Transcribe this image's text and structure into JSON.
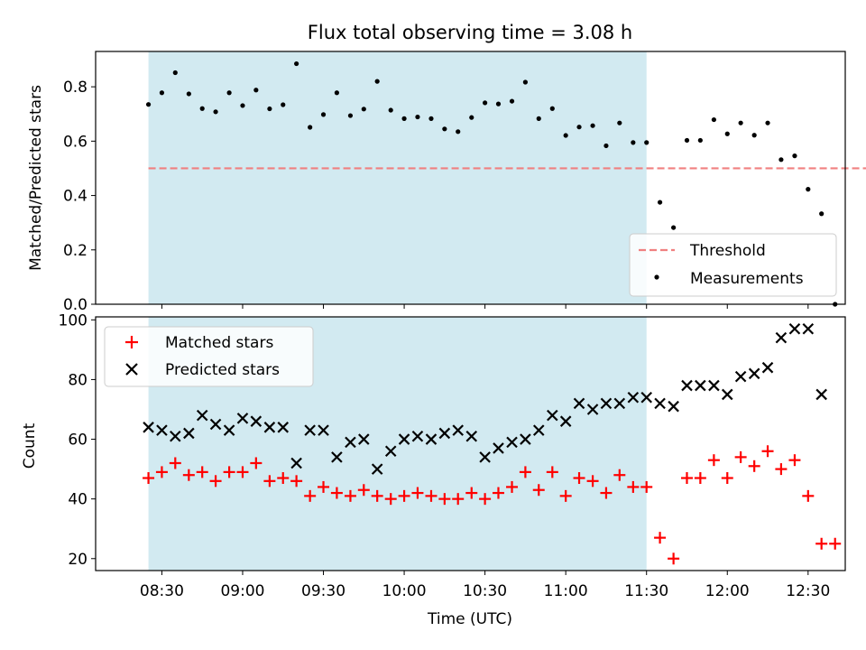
{
  "title": "Flux total observing time = 3.08 h",
  "chart_data": [
    {
      "type": "scatter",
      "panel": "top",
      "ylabel": "Matched/Predicted stars",
      "ylim": [
        0,
        0.93
      ],
      "yticks": [
        0.0,
        0.2,
        0.4,
        0.6,
        0.8
      ],
      "ytick_labels": [
        "0.0",
        "0.2",
        "0.4",
        "0.6",
        "0.8"
      ],
      "threshold": {
        "label": "Threshold",
        "value": 0.5,
        "x_range": [
          8.417,
          12.917
        ],
        "color": "#f08080"
      },
      "shaded_interval": {
        "x_start": 8.417,
        "x_end": 11.5,
        "color": "#add8e6"
      },
      "legend": [
        "Threshold",
        "Measurements"
      ],
      "series": [
        {
          "name": "Measurements",
          "color": "#000000",
          "x": [
            8.417,
            8.5,
            8.583,
            8.667,
            8.75,
            8.833,
            8.917,
            9.0,
            9.083,
            9.167,
            9.25,
            9.333,
            9.417,
            9.5,
            9.583,
            9.667,
            9.75,
            9.833,
            9.917,
            10.0,
            10.083,
            10.167,
            10.25,
            10.333,
            10.417,
            10.5,
            10.583,
            10.667,
            10.75,
            10.833,
            10.917,
            11.0,
            11.083,
            11.167,
            11.25,
            11.333,
            11.417,
            11.5,
            11.583,
            11.667,
            11.75,
            11.833,
            11.917,
            12.0,
            12.083,
            12.167,
            12.25,
            12.333,
            12.417,
            12.5,
            12.583,
            12.667
          ],
          "y": [
            0.735,
            0.778,
            0.852,
            0.774,
            0.72,
            0.708,
            0.778,
            0.731,
            0.788,
            0.719,
            0.734,
            0.885,
            0.651,
            0.698,
            0.778,
            0.694,
            0.718,
            0.82,
            0.714,
            0.683,
            0.689,
            0.683,
            0.645,
            0.635,
            0.687,
            0.741,
            0.737,
            0.747,
            0.817,
            0.683,
            0.72,
            0.621,
            0.652,
            0.657,
            0.583,
            0.667,
            0.595,
            0.595,
            0.375,
            0.282,
            0.603,
            0.603,
            0.679,
            0.627,
            0.667,
            0.622,
            0.667,
            0.532,
            0.546,
            0.423,
            0.333,
            0.0
          ]
        }
      ]
    },
    {
      "type": "scatter",
      "panel": "bottom",
      "xlabel": "Time (UTC)",
      "ylabel": "Count",
      "ylim": [
        16,
        101
      ],
      "yticks": [
        20,
        40,
        60,
        80,
        100
      ],
      "ytick_labels": [
        "20",
        "40",
        "60",
        "80",
        "100"
      ],
      "xlim": [
        8.09,
        12.73
      ],
      "xticks": [
        8.5,
        9.0,
        9.5,
        10.0,
        10.5,
        11.0,
        11.5,
        12.0,
        12.5
      ],
      "xtick_labels": [
        "08:30",
        "09:00",
        "09:30",
        "10:00",
        "10:30",
        "11:00",
        "11:30",
        "12:00",
        "12:30"
      ],
      "shaded_interval": {
        "x_start": 8.417,
        "x_end": 11.5,
        "color": "#add8e6"
      },
      "legend": [
        "Matched stars",
        "Predicted stars"
      ],
      "series": [
        {
          "name": "Matched stars",
          "marker": "+",
          "color": "#ff0000",
          "x": [
            8.417,
            8.5,
            8.583,
            8.667,
            8.75,
            8.833,
            8.917,
            9.0,
            9.083,
            9.167,
            9.25,
            9.333,
            9.417,
            9.5,
            9.583,
            9.667,
            9.75,
            9.833,
            9.917,
            10.0,
            10.083,
            10.167,
            10.25,
            10.333,
            10.417,
            10.5,
            10.583,
            10.667,
            10.75,
            10.833,
            10.917,
            11.0,
            11.083,
            11.167,
            11.25,
            11.333,
            11.417,
            11.5,
            11.583,
            11.667,
            11.75,
            11.833,
            11.917,
            12.0,
            12.083,
            12.167,
            12.25,
            12.333,
            12.417,
            12.5,
            12.583,
            12.667
          ],
          "y": [
            47,
            49,
            52,
            48,
            49,
            46,
            49,
            49,
            52,
            46,
            47,
            46,
            41,
            44,
            42,
            41,
            43,
            41,
            40,
            41,
            42,
            41,
            40,
            40,
            42,
            40,
            42,
            44,
            49,
            43,
            49,
            41,
            47,
            46,
            42,
            48,
            44,
            44,
            27,
            20,
            47,
            47,
            53,
            47,
            54,
            51,
            56,
            50,
            53,
            41,
            25,
            25
          ]
        },
        {
          "name": "Predicted stars",
          "marker": "x",
          "color": "#000000",
          "x": [
            8.417,
            8.5,
            8.583,
            8.667,
            8.75,
            8.833,
            8.917,
            9.0,
            9.083,
            9.167,
            9.25,
            9.333,
            9.417,
            9.5,
            9.583,
            9.667,
            9.75,
            9.833,
            9.917,
            10.0,
            10.083,
            10.167,
            10.25,
            10.333,
            10.417,
            10.5,
            10.583,
            10.667,
            10.75,
            10.833,
            10.917,
            11.0,
            11.083,
            11.167,
            11.25,
            11.333,
            11.417,
            11.5,
            11.583,
            11.667,
            11.75,
            11.833,
            11.917,
            12.0,
            12.083,
            12.167,
            12.25,
            12.333,
            12.417,
            12.5,
            12.583
          ],
          "y": [
            64,
            63,
            61,
            62,
            68,
            65,
            63,
            67,
            66,
            64,
            64,
            52,
            63,
            63,
            54,
            59,
            60,
            50,
            56,
            60,
            61,
            60,
            62,
            63,
            61,
            54,
            57,
            59,
            60,
            63,
            68,
            66,
            72,
            70,
            72,
            72,
            74,
            74,
            72,
            71,
            78,
            78,
            78,
            75,
            81,
            82,
            84,
            94,
            97,
            97,
            75
          ]
        }
      ]
    }
  ]
}
